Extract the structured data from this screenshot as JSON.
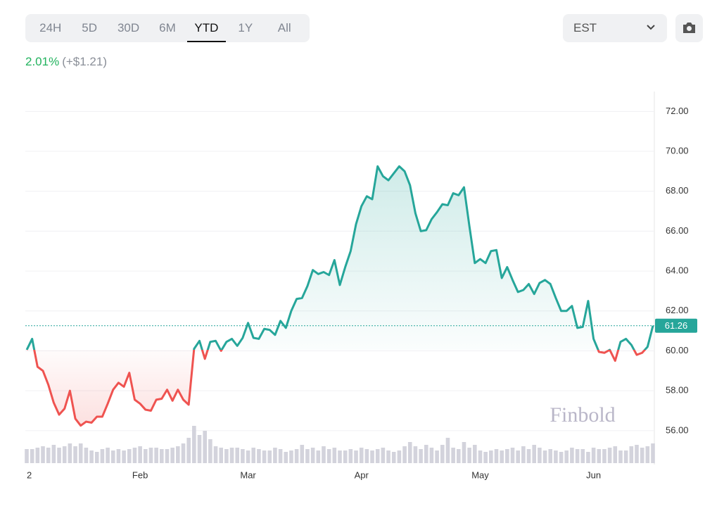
{
  "range_buttons": [
    "24H",
    "5D",
    "30D",
    "6M",
    "YTD",
    "1Y",
    "All"
  ],
  "active_range": 4,
  "timezone": "EST",
  "change": {
    "percent": "2.01%",
    "amount": "(+$1.21)"
  },
  "watermark": "Finbold",
  "chart_data": {
    "type": "line",
    "xlim": [
      0,
      116
    ],
    "xticks": [
      {
        "value": 0,
        "label": "2"
      },
      {
        "value": 21,
        "label": "Feb"
      },
      {
        "value": 41,
        "label": "Mar"
      },
      {
        "value": 62,
        "label": "Apr"
      },
      {
        "value": 84,
        "label": "May"
      },
      {
        "value": 105,
        "label": "Jun"
      }
    ],
    "ylim": [
      54.3,
      73
    ],
    "yticks": [
      {
        "value": 56,
        "label": "56.00"
      },
      {
        "value": 58,
        "label": "58.00"
      },
      {
        "value": 60,
        "label": "60.00"
      },
      {
        "value": 62,
        "label": "62.00"
      },
      {
        "value": 64,
        "label": "64.00"
      },
      {
        "value": 66,
        "label": "66.00"
      },
      {
        "value": 68,
        "label": "68.00"
      },
      {
        "value": 70,
        "label": "70.00"
      },
      {
        "value": 72,
        "label": "72.00"
      }
    ],
    "grid": true,
    "series": [
      {
        "color": "#26a69a",
        "values": [
          60.05,
          60.6,
          59.2,
          59.0,
          58.3,
          57.4,
          56.8,
          57.1,
          58.0,
          56.6,
          56.25,
          56.45,
          56.4,
          56.7,
          56.7,
          57.35,
          58.05,
          58.4,
          58.2,
          58.9,
          57.55,
          57.35,
          57.05,
          57.0,
          57.55,
          57.6,
          58.05,
          57.5,
          58.05,
          57.55,
          57.3,
          60.1,
          60.5,
          59.6,
          60.45,
          60.5,
          60.0,
          60.45,
          60.6,
          60.25,
          60.65,
          61.4,
          60.65,
          60.6,
          61.1,
          61.05,
          60.8,
          61.5,
          61.15,
          62.0,
          62.6,
          62.65,
          63.25,
          64.05,
          63.85,
          63.95,
          63.8,
          64.55,
          63.3,
          64.2,
          65.0,
          66.35,
          67.25,
          67.75,
          67.6,
          69.25,
          68.75,
          68.55,
          68.9,
          69.25,
          69.0,
          68.3,
          66.9,
          66.0,
          66.05,
          66.6,
          66.95,
          67.35,
          67.3,
          67.9,
          67.8,
          68.2,
          66.25,
          64.4,
          64.6,
          64.4,
          65.0,
          65.05,
          63.65,
          64.2,
          63.55,
          62.95,
          63.05,
          63.35,
          62.85,
          63.4,
          63.55,
          63.35,
          62.65,
          62.0,
          62.0,
          62.25,
          61.15,
          61.2,
          62.5,
          60.6,
          59.95,
          59.9,
          60.05,
          59.5,
          60.45,
          60.6,
          60.3,
          59.8,
          59.9,
          60.2,
          61.26
        ]
      }
    ],
    "negative_color": "#ef5350",
    "volume": [
      20,
      20,
      22,
      24,
      22,
      26,
      22,
      24,
      28,
      24,
      28,
      22,
      18,
      16,
      20,
      22,
      18,
      20,
      18,
      20,
      22,
      24,
      20,
      22,
      22,
      20,
      20,
      22,
      24,
      28,
      36,
      53,
      40,
      46,
      34,
      24,
      22,
      20,
      22,
      22,
      20,
      18,
      22,
      20,
      18,
      18,
      22,
      20,
      16,
      18,
      20,
      26,
      20,
      22,
      18,
      24,
      20,
      22,
      18,
      18,
      20,
      18,
      22,
      20,
      18,
      20,
      22,
      18,
      16,
      18,
      24,
      30,
      24,
      20,
      26,
      22,
      18,
      26,
      36,
      22,
      20,
      30,
      22,
      26,
      18,
      16,
      18,
      20,
      18,
      20,
      22,
      18,
      24,
      20,
      26,
      22,
      18,
      20,
      18,
      16,
      18,
      22,
      20,
      20,
      16,
      22,
      20,
      20,
      22,
      24,
      18,
      18,
      24,
      26,
      22,
      24,
      28
    ],
    "volume_color": "#d3d3dc"
  }
}
